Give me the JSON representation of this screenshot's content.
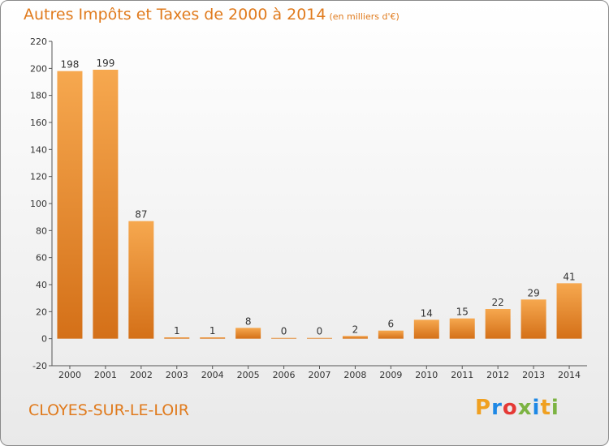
{
  "title": "Autres Impôts et Taxes de 2000 à 2014",
  "subtitle": "(en milliers d'€)",
  "place": "CLOYES-SUR-LE-LOIR",
  "logo": {
    "letters": [
      "P",
      "r",
      "o",
      "x",
      "i",
      "t",
      "i"
    ],
    "colors": [
      "#f0a020",
      "#1e88e5",
      "#e53935",
      "#7cb342",
      "#1e88e5",
      "#f0a020",
      "#7cb342"
    ]
  },
  "colors": {
    "bar_light": "#f6a84f",
    "bar_dark": "#d47018",
    "accent": "#e07a1c"
  },
  "chart_data": {
    "type": "bar",
    "categories": [
      "2000",
      "2001",
      "2002",
      "2003",
      "2004",
      "2005",
      "2006",
      "2007",
      "2008",
      "2009",
      "2010",
      "2011",
      "2012",
      "2013",
      "2014"
    ],
    "values": [
      198,
      199,
      87,
      1,
      1,
      8,
      0,
      0,
      2,
      6,
      14,
      15,
      22,
      29,
      41
    ],
    "ylim": [
      -20,
      220
    ],
    "yticks": [
      -20,
      0,
      20,
      40,
      60,
      80,
      100,
      120,
      140,
      160,
      180,
      200,
      220
    ],
    "grid": false
  }
}
